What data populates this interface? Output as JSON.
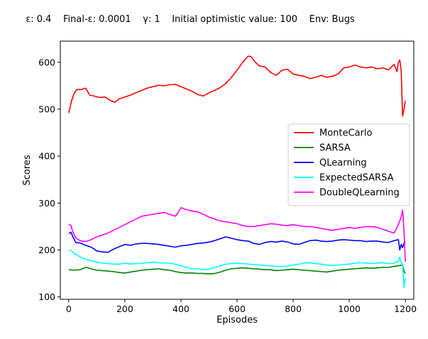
{
  "chart_data": {
    "type": "line",
    "title": "ε: 0.4    Final-ε: 0.0001    γ: 1    Initial optimistic value: 100    Env: Bugs",
    "xlabel": "Episodes",
    "ylabel": "Scores",
    "xlim": [
      -30,
      1230
    ],
    "ylim": [
      95,
      645
    ],
    "xticks": [
      0,
      200,
      400,
      600,
      800,
      1000,
      1200
    ],
    "yticks": [
      100,
      200,
      300,
      400,
      500,
      600
    ],
    "grid": false,
    "legend_position": "center-right",
    "series": [
      {
        "name": "MonteCarlo",
        "color": "#ff0000",
        "x": [
          0,
          10,
          20,
          30,
          45,
          60,
          75,
          90,
          110,
          130,
          150,
          165,
          180,
          200,
          220,
          240,
          260,
          280,
          300,
          320,
          340,
          360,
          380,
          400,
          420,
          440,
          460,
          480,
          500,
          520,
          540,
          560,
          580,
          600,
          620,
          640,
          650,
          665,
          680,
          700,
          720,
          740,
          760,
          780,
          800,
          820,
          840,
          860,
          880,
          900,
          920,
          940,
          960,
          980,
          1000,
          1020,
          1040,
          1060,
          1080,
          1100,
          1120,
          1140,
          1150,
          1160,
          1170,
          1175,
          1180,
          1185,
          1190,
          1195,
          1200
        ],
        "values": [
          492,
          518,
          535,
          542,
          542,
          545,
          530,
          528,
          525,
          526,
          518,
          515,
          522,
          526,
          530,
          535,
          540,
          545,
          548,
          551,
          550,
          552,
          553,
          548,
          543,
          538,
          531,
          528,
          535,
          540,
          546,
          555,
          568,
          583,
          600,
          613,
          612,
          600,
          592,
          590,
          578,
          572,
          583,
          585,
          575,
          572,
          570,
          565,
          568,
          572,
          568,
          570,
          575,
          588,
          590,
          594,
          590,
          588,
          590,
          586,
          588,
          584,
          590,
          595,
          580,
          600,
          605,
          582,
          485,
          500,
          518
        ]
      },
      {
        "name": "SARSA",
        "color": "#008000",
        "x": [
          0,
          20,
          40,
          60,
          80,
          100,
          120,
          140,
          160,
          180,
          200,
          220,
          240,
          260,
          280,
          300,
          320,
          340,
          360,
          380,
          400,
          420,
          440,
          460,
          480,
          500,
          520,
          540,
          560,
          580,
          600,
          620,
          640,
          660,
          680,
          700,
          720,
          740,
          760,
          780,
          800,
          820,
          840,
          860,
          880,
          900,
          920,
          940,
          960,
          980,
          1000,
          1020,
          1040,
          1060,
          1080,
          1100,
          1120,
          1140,
          1160,
          1180,
          1190,
          1195,
          1200
        ],
        "values": [
          158,
          157,
          158,
          163,
          160,
          157,
          156,
          155,
          154,
          152,
          151,
          153,
          155,
          157,
          158,
          159,
          160,
          158,
          157,
          154,
          152,
          151,
          151,
          150,
          150,
          149,
          150,
          153,
          157,
          160,
          161,
          162,
          161,
          160,
          159,
          158,
          158,
          156,
          157,
          158,
          159,
          158,
          157,
          156,
          155,
          154,
          153,
          155,
          157,
          158,
          159,
          160,
          161,
          162,
          161,
          162,
          163,
          163,
          165,
          167,
          168,
          155,
          150
        ]
      },
      {
        "name": "QLearning",
        "color": "#0000ff",
        "x": [
          0,
          8,
          15,
          25,
          40,
          60,
          80,
          100,
          120,
          140,
          160,
          180,
          200,
          220,
          240,
          260,
          280,
          300,
          320,
          340,
          360,
          380,
          400,
          420,
          440,
          460,
          480,
          500,
          520,
          540,
          560,
          580,
          600,
          620,
          640,
          660,
          680,
          700,
          720,
          740,
          760,
          780,
          800,
          820,
          840,
          860,
          880,
          900,
          920,
          940,
          960,
          980,
          1000,
          1020,
          1040,
          1060,
          1080,
          1100,
          1120,
          1140,
          1160,
          1175,
          1180,
          1185,
          1190,
          1195,
          1200
        ],
        "values": [
          235,
          238,
          228,
          216,
          215,
          210,
          206,
          198,
          196,
          195,
          202,
          207,
          212,
          210,
          213,
          214,
          214,
          213,
          212,
          210,
          208,
          206,
          209,
          210,
          212,
          214,
          215,
          217,
          220,
          224,
          228,
          225,
          222,
          220,
          219,
          214,
          212,
          216,
          218,
          217,
          219,
          217,
          213,
          212,
          216,
          220,
          221,
          219,
          218,
          219,
          221,
          222,
          221,
          220,
          220,
          218,
          219,
          219,
          217,
          216,
          220,
          222,
          200,
          212,
          205,
          215,
          218
        ]
      },
      {
        "name": "ExpectedSARSA",
        "color": "#00ffff",
        "x": [
          0,
          10,
          20,
          30,
          40,
          60,
          80,
          100,
          120,
          140,
          160,
          180,
          200,
          220,
          240,
          260,
          280,
          300,
          320,
          340,
          360,
          380,
          400,
          420,
          440,
          460,
          480,
          500,
          520,
          540,
          560,
          580,
          600,
          620,
          640,
          660,
          680,
          700,
          720,
          740,
          760,
          780,
          800,
          820,
          840,
          860,
          880,
          900,
          920,
          940,
          960,
          980,
          1000,
          1020,
          1040,
          1060,
          1080,
          1100,
          1120,
          1140,
          1160,
          1175,
          1180,
          1185,
          1190,
          1195,
          1200
        ],
        "values": [
          200,
          198,
          192,
          190,
          185,
          180,
          177,
          174,
          172,
          171,
          170,
          170,
          172,
          170,
          171,
          172,
          173,
          174,
          173,
          172,
          172,
          170,
          166,
          163,
          160,
          160,
          158,
          159,
          163,
          166,
          170,
          171,
          172,
          171,
          170,
          169,
          168,
          167,
          166,
          165,
          165,
          166,
          168,
          170,
          172,
          173,
          171,
          170,
          168,
          167,
          168,
          169,
          170,
          172,
          173,
          172,
          171,
          172,
          173,
          171,
          172,
          176,
          185,
          175,
          168,
          120,
          140
        ]
      },
      {
        "name": "DoubleQLearning",
        "color": "#ff00ff",
        "x": [
          0,
          8,
          15,
          25,
          40,
          60,
          80,
          100,
          120,
          140,
          160,
          180,
          200,
          220,
          240,
          260,
          280,
          300,
          320,
          340,
          360,
          380,
          390,
          400,
          420,
          440,
          460,
          480,
          500,
          520,
          540,
          560,
          580,
          600,
          620,
          640,
          660,
          680,
          700,
          720,
          740,
          760,
          780,
          800,
          820,
          840,
          860,
          880,
          900,
          920,
          940,
          960,
          980,
          1000,
          1020,
          1040,
          1060,
          1080,
          1100,
          1120,
          1140,
          1160,
          1170,
          1180,
          1185,
          1190,
          1195,
          1200
        ],
        "values": [
          255,
          252,
          238,
          226,
          220,
          218,
          222,
          228,
          232,
          236,
          242,
          248,
          254,
          260,
          266,
          272,
          274,
          276,
          278,
          280,
          276,
          272,
          280,
          290,
          286,
          283,
          281,
          276,
          270,
          266,
          262,
          260,
          258,
          256,
          252,
          250,
          250,
          252,
          254,
          256,
          255,
          253,
          252,
          254,
          252,
          250,
          250,
          248,
          246,
          244,
          242,
          244,
          246,
          248,
          246,
          248,
          250,
          250,
          248,
          244,
          240,
          236,
          248,
          262,
          270,
          285,
          240,
          175
        ]
      }
    ]
  }
}
